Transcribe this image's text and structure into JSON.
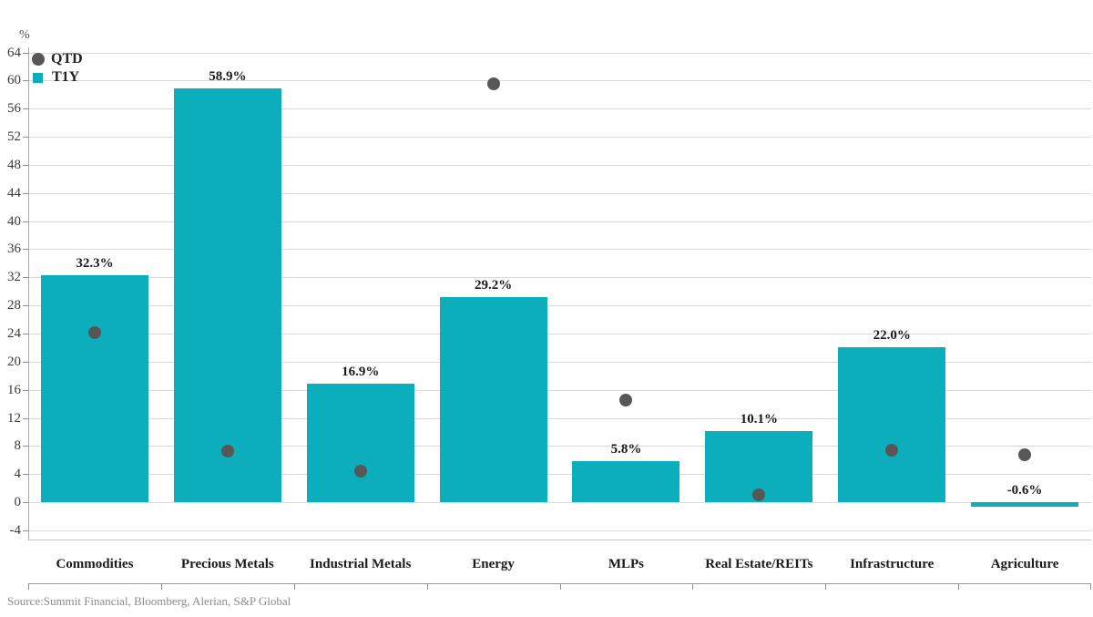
{
  "axis": {
    "unit_label": "%",
    "y_ticks": [
      64,
      60,
      56,
      52,
      48,
      44,
      40,
      36,
      32,
      28,
      24,
      20,
      16,
      12,
      8,
      4,
      0,
      -4
    ],
    "ylim": [
      -4,
      64
    ],
    "y_step": 4
  },
  "legend": {
    "items": [
      {
        "label": "QTD",
        "marker": "circle",
        "color": "#575757"
      },
      {
        "label": "T1Y",
        "marker": "square",
        "color": "#0caebc"
      }
    ]
  },
  "chart_data": {
    "type": "bar",
    "title": "",
    "xlabel": "",
    "ylabel": "%",
    "ylim": [
      -4,
      64
    ],
    "y_step": 4,
    "grid": true,
    "legend_position": "top-left",
    "categories": [
      "Commodities",
      "Precious Metals",
      "Industrial Metals",
      "Energy",
      "MLPs",
      "Real Estate/REITs",
      "Infrastructure",
      "Agriculture"
    ],
    "series": [
      {
        "name": "T1Y",
        "type": "bar",
        "color": "#0caebc",
        "values": [
          32.3,
          58.9,
          16.9,
          29.2,
          5.8,
          10.1,
          22.0,
          -0.6
        ],
        "labels": [
          "32.3%",
          "58.9%",
          "16.9%",
          "29.2%",
          "5.8%",
          "10.1%",
          "22.0%",
          "-0.6%"
        ]
      },
      {
        "name": "QTD",
        "type": "scatter",
        "color": "#575757",
        "values": [
          24.2,
          7.3,
          4.4,
          59.5,
          14.6,
          1.1,
          7.4,
          6.8
        ]
      }
    ]
  },
  "footer": {
    "source_text": "Source:Summit Financial, Bloomberg, Alerian, S&P Global"
  },
  "colors": {
    "background": "#ffffff",
    "bar": "#0caebc",
    "dot": "#575757",
    "gridline": "#d9d9d9",
    "axis_line": "#a8a8a8",
    "tick_label": "#3a3a3a",
    "category_label": "#1a1a1a",
    "source": "#8c8c8c"
  }
}
